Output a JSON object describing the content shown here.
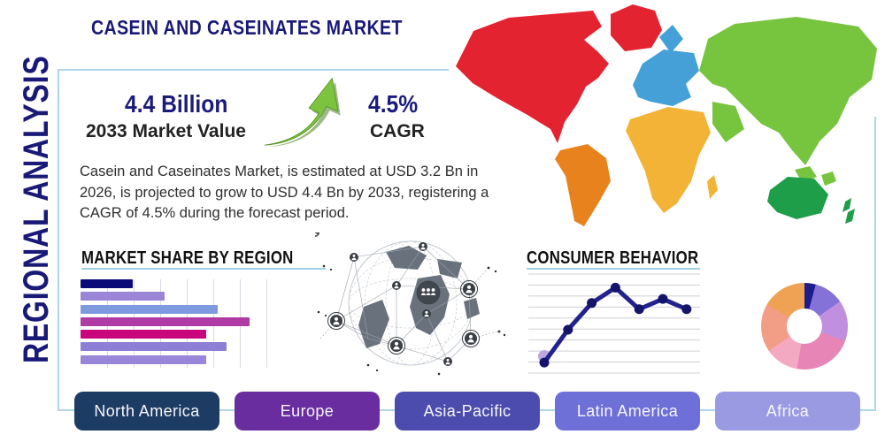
{
  "page": {
    "title": "CASEIN AND CASEINATES MARKET",
    "side_label": "REGIONAL ANALYSIS"
  },
  "stats": {
    "market_value": "4.4 Billion",
    "market_value_label": "2033 Market Value",
    "cagr_value": "4.5%",
    "cagr_label": "CAGR",
    "arrow_color": "#7cc33f"
  },
  "description": "Casein and Caseinates Market, is estimated at USD 3.2 Bn in 2026, is projected to grow to USD 4.4 Bn by 2033, registering a CAGR of 4.5% during the forecast period.",
  "regions": [
    {
      "label": "North America",
      "color": "#1d3c63"
    },
    {
      "label": "Europe",
      "color": "#6a2da0"
    },
    {
      "label": "Asia-Pacific",
      "color": "#4c4cae"
    },
    {
      "label": "Latin America",
      "color": "#6f6fd8"
    },
    {
      "label": "Africa",
      "color": "#9a9ae2"
    }
  ],
  "chart_data": [
    {
      "type": "bar",
      "title": "MARKET SHARE BY REGION",
      "orientation": "horizontal",
      "values": [
        28,
        45,
        73,
        90,
        67,
        78,
        67
      ],
      "colors": [
        "#0a0a78",
        "#9b85d6",
        "#7e9ade",
        "#b13ba5",
        "#c9067c",
        "#8d7fd6",
        "#9a86d8"
      ],
      "xlim": [
        0,
        100
      ],
      "grid": "vertical",
      "gridline_step_pct": 14.15,
      "categories": [],
      "note": "no axis labels shown"
    },
    {
      "type": "line",
      "title": "CONSUMER BEHAVIOR",
      "x": [
        1,
        2,
        3,
        4,
        5,
        6,
        7
      ],
      "values": [
        12,
        44,
        70,
        85,
        64,
        74,
        64
      ],
      "ylim": [
        0,
        100
      ],
      "grid": "horizontal",
      "gridline_count": 10,
      "line_color": "#22228c",
      "marker_color": "#14146b",
      "first_point_halo_color": "#b49fd9"
    },
    {
      "type": "pie",
      "title": "",
      "style": "donut",
      "inner_radius_ratio": 0.41,
      "slices": [
        {
          "value": 4.2,
          "color": "#1c1c8a"
        },
        {
          "value": 11.1,
          "color": "#8472d8"
        },
        {
          "value": 15.3,
          "color": "#c18fe0"
        },
        {
          "value": 22.2,
          "color": "#e786b6"
        },
        {
          "value": 12.5,
          "color": "#f4a9c2"
        },
        {
          "value": 18.0,
          "color": "#f29e86"
        },
        {
          "value": 16.7,
          "color": "#efa254"
        }
      ]
    }
  ],
  "world_map": {
    "continents": {
      "north_america": "#e32330",
      "greenland": "#e32330",
      "south_america": "#e8821c",
      "europe": "#45a0d8",
      "africa": "#f2b336",
      "asia": "#77c43e",
      "australia": "#1f9e4a",
      "new_zealand": "#1f9e4a"
    }
  },
  "frame_color": "#aed6e8"
}
